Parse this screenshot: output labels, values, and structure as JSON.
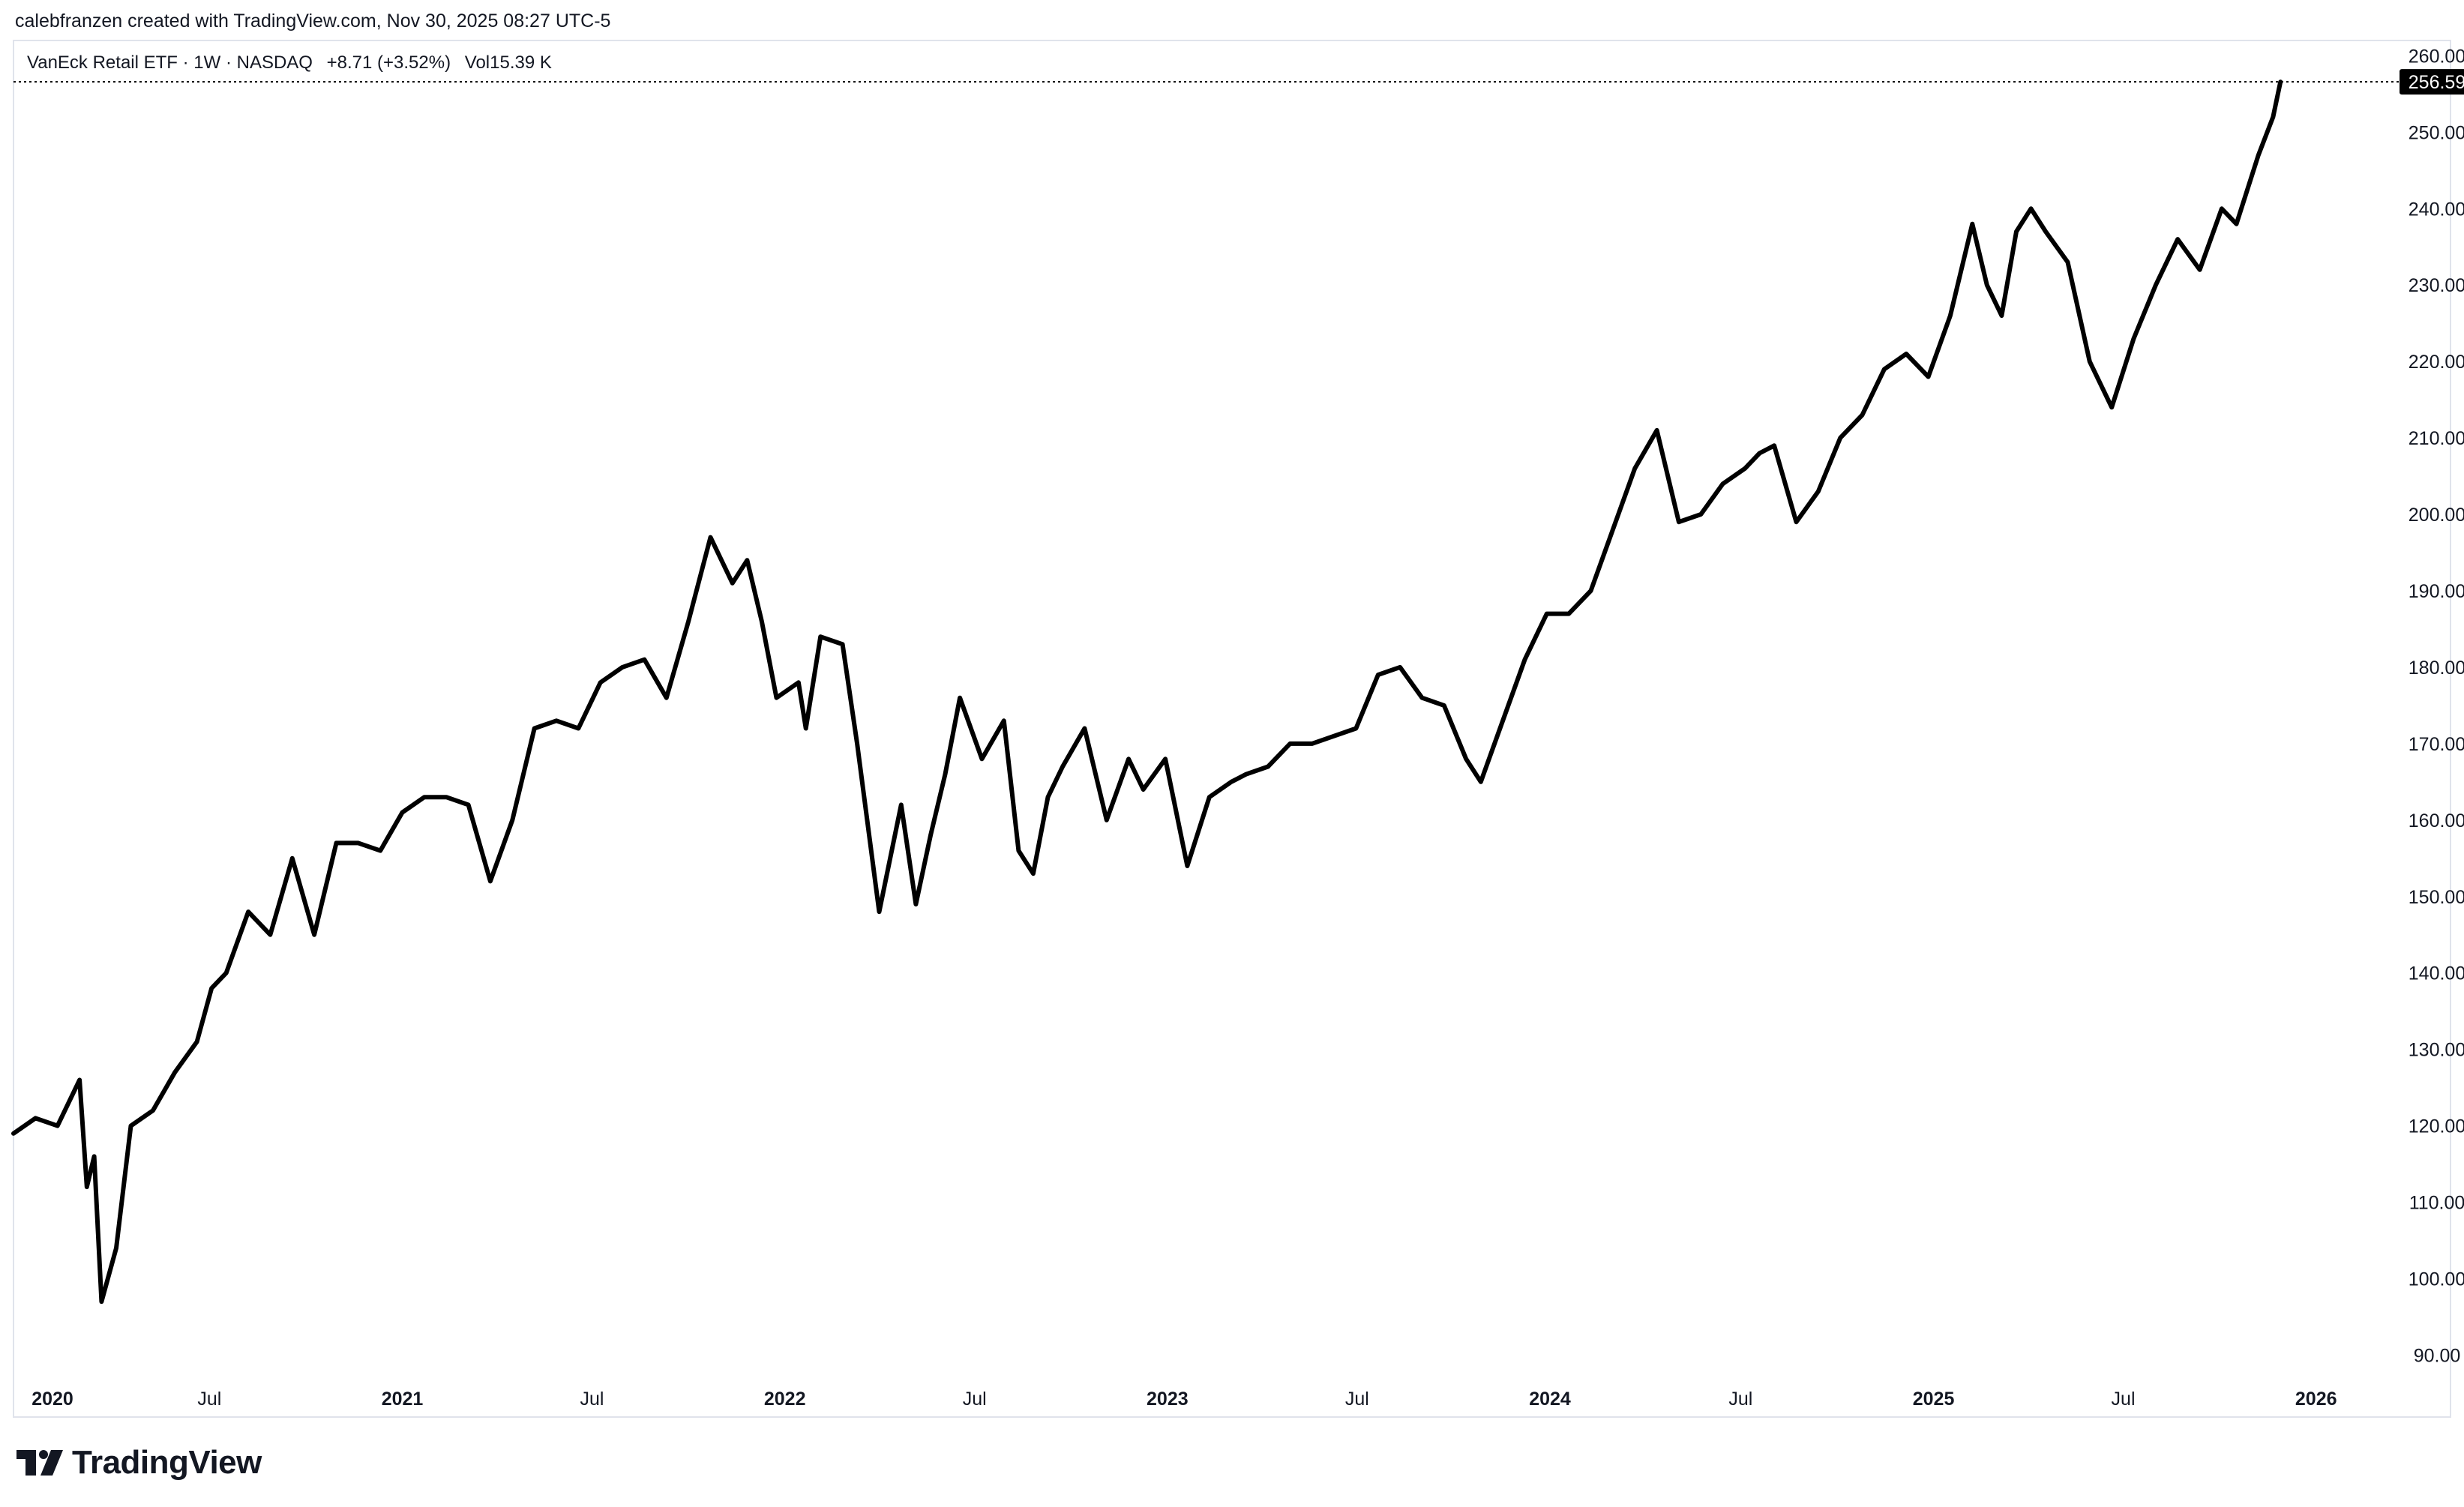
{
  "header": {
    "attribution": "calebfranzen created with TradingView.com, Nov 30, 2025 08:27 UTC-5"
  },
  "legend": {
    "symbol": "VanEck Retail ETF · 1W · NASDAQ",
    "change": "+8.71 (+3.52%)",
    "volume": "Vol15.39 K"
  },
  "last_price_label": "256.59",
  "logo": {
    "name": "TradingView",
    "icon": "tradingview-logo-icon"
  },
  "colors": {
    "line": "#000000",
    "axis_text": "#131722",
    "price_tag_bg": "#000000",
    "border": "#e0e3eb"
  },
  "chart_data": {
    "type": "line",
    "title": "",
    "xlabel": "",
    "ylabel": "",
    "ylim": [
      87,
      262
    ],
    "xlim": [
      "2019-12-27",
      "2026-02-21"
    ],
    "y_ticks": [
      "90.00",
      "100.00",
      "110.00",
      "120.00",
      "130.00",
      "140.00",
      "150.00",
      "160.00",
      "170.00",
      "180.00",
      "190.00",
      "200.00",
      "210.00",
      "220.00",
      "230.00",
      "240.00",
      "250.00",
      "260.00"
    ],
    "x_ticks": [
      {
        "label": "2020",
        "date": "2020-01-01",
        "bold": true
      },
      {
        "label": "Jul",
        "date": "2020-07-01",
        "bold": false
      },
      {
        "label": "2021",
        "date": "2021-01-01",
        "bold": true
      },
      {
        "label": "Jul",
        "date": "2021-07-01",
        "bold": false
      },
      {
        "label": "2022",
        "date": "2022-01-01",
        "bold": true
      },
      {
        "label": "Jul",
        "date": "2022-07-01",
        "bold": false
      },
      {
        "label": "2023",
        "date": "2023-01-01",
        "bold": true
      },
      {
        "label": "Jul",
        "date": "2023-07-01",
        "bold": false
      },
      {
        "label": "2024",
        "date": "2024-01-01",
        "bold": true
      },
      {
        "label": "Jul",
        "date": "2024-07-01",
        "bold": false
      },
      {
        "label": "2025",
        "date": "2025-01-01",
        "bold": true
      },
      {
        "label": "Jul",
        "date": "2025-07-01",
        "bold": false
      },
      {
        "label": "2026",
        "date": "2026-01-01",
        "bold": true
      }
    ],
    "last_value": 256.59,
    "series": [
      {
        "x": [
          "2019-12-27",
          "2020-01-17",
          "2020-02-07",
          "2020-02-28",
          "2020-03-06",
          "2020-03-13",
          "2020-03-20",
          "2020-04-03",
          "2020-04-17",
          "2020-05-08",
          "2020-05-29",
          "2020-06-19",
          "2020-07-03",
          "2020-07-17",
          "2020-08-07",
          "2020-08-28",
          "2020-09-18",
          "2020-10-09",
          "2020-10-30",
          "2020-11-20",
          "2020-12-11",
          "2021-01-01",
          "2021-01-22",
          "2021-02-12",
          "2021-03-05",
          "2021-03-26",
          "2021-04-16",
          "2021-05-07",
          "2021-05-28",
          "2021-06-18",
          "2021-07-09",
          "2021-07-30",
          "2021-08-20",
          "2021-09-10",
          "2021-10-01",
          "2021-10-22",
          "2021-11-12",
          "2021-11-26",
          "2021-12-10",
          "2021-12-24",
          "2022-01-14",
          "2022-01-21",
          "2022-02-04",
          "2022-02-25",
          "2022-03-11",
          "2022-04-01",
          "2022-04-22",
          "2022-05-06",
          "2022-05-20",
          "2022-06-03",
          "2022-06-17",
          "2022-07-08",
          "2022-07-29",
          "2022-08-12",
          "2022-08-26",
          "2022-09-09",
          "2022-09-23",
          "2022-10-14",
          "2022-11-04",
          "2022-11-25",
          "2022-12-09",
          "2022-12-30",
          "2023-01-20",
          "2023-02-10",
          "2023-03-03",
          "2023-03-17",
          "2023-04-07",
          "2023-04-28",
          "2023-05-19",
          "2023-06-09",
          "2023-06-30",
          "2023-07-21",
          "2023-08-11",
          "2023-09-01",
          "2023-09-22",
          "2023-10-13",
          "2023-10-27",
          "2023-11-17",
          "2023-12-08",
          "2023-12-29",
          "2024-01-19",
          "2024-02-09",
          "2024-03-01",
          "2024-03-22",
          "2024-04-12",
          "2024-05-03",
          "2024-05-24",
          "2024-06-14",
          "2024-07-05",
          "2024-07-19",
          "2024-08-02",
          "2024-08-23",
          "2024-09-13",
          "2024-10-04",
          "2024-10-25",
          "2024-11-15",
          "2024-12-06",
          "2024-12-27",
          "2025-01-17",
          "2025-02-07",
          "2025-02-21",
          "2025-03-07",
          "2025-03-21",
          "2025-04-04",
          "2025-04-18",
          "2025-05-09",
          "2025-05-30",
          "2025-06-20",
          "2025-07-11",
          "2025-08-01",
          "2025-08-22",
          "2025-09-12",
          "2025-10-03",
          "2025-10-17",
          "2025-11-07",
          "2025-11-21",
          "2025-11-28"
        ],
        "values": [
          119,
          121,
          120,
          126,
          112,
          116,
          97,
          104,
          120,
          122,
          127,
          131,
          138,
          140,
          148,
          145,
          155,
          145,
          157,
          157,
          156,
          161,
          163,
          163,
          162,
          152,
          160,
          172,
          173,
          172,
          178,
          180,
          181,
          176,
          186,
          197,
          191,
          194,
          186,
          176,
          178,
          172,
          184,
          183,
          170,
          148,
          162,
          149,
          158,
          166,
          176,
          168,
          173,
          156,
          153,
          163,
          167,
          172,
          160,
          168,
          164,
          168,
          154,
          163,
          165,
          166,
          167,
          170,
          170,
          171,
          172,
          179,
          180,
          176,
          175,
          168,
          165,
          173,
          181,
          187,
          187,
          190,
          198,
          206,
          211,
          199,
          200,
          204,
          206,
          208,
          209,
          199,
          203,
          210,
          213,
          219,
          221,
          218,
          226,
          238,
          230,
          226,
          237,
          240,
          237,
          233,
          220,
          214,
          223,
          230,
          236,
          232,
          240,
          238,
          247,
          252,
          256.59
        ]
      }
    ]
  }
}
